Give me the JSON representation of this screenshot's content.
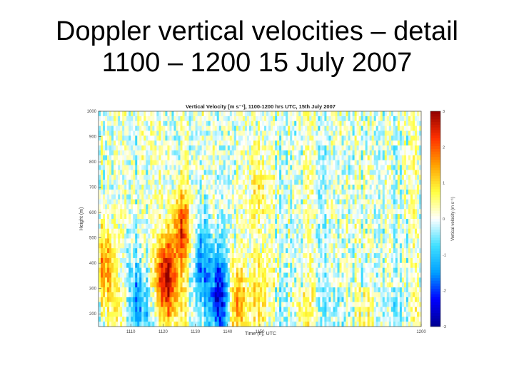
{
  "slide": {
    "title_line1": "Doppler vertical velocities – detail",
    "title_line2": "1100 – 1200 15 July 2007"
  },
  "chart_data": {
    "type": "heatmap",
    "title": "Vertical Velocity [m s⁻¹], 1100-1200 hrs UTC, 15th July 2007",
    "xlabel": "Time (h), UTC",
    "ylabel": "Height (m)",
    "colorbar_label": "Vertical velocity (m s⁻¹)",
    "x_ticks": [
      "1110",
      "1120",
      "1130",
      "1140",
      "1150",
      "1200"
    ],
    "y_ticks": [
      200,
      300,
      400,
      500,
      600,
      700,
      800,
      900,
      1000
    ],
    "colorbar_ticks": [
      -3,
      -2,
      -1,
      0,
      1,
      2,
      3
    ],
    "xlim": [
      1100,
      1200
    ],
    "ylim": [
      150,
      1000
    ],
    "clim": [
      -3,
      3
    ],
    "colormap": [
      "#00008f",
      "#0000ff",
      "#00a0ff",
      "#40e0ff",
      "#ffffff",
      "#ffff40",
      "#ffa000",
      "#ff3000",
      "#8f0000"
    ],
    "features": [
      {
        "name": "strong updraft",
        "time": 1121,
        "height": 330,
        "value": 2.8
      },
      {
        "name": "updraft plume top",
        "time": 1126,
        "height": 520,
        "value": 2.0
      },
      {
        "name": "updraft left edge",
        "time": 1102,
        "height": 380,
        "value": 1.5
      },
      {
        "name": "downdraft",
        "time": 1138,
        "height": 280,
        "value": -2.5
      },
      {
        "name": "downdraft",
        "time": 1132,
        "height": 400,
        "value": -1.5
      },
      {
        "name": "downdraft",
        "time": 1112,
        "height": 250,
        "value": -1.4
      },
      {
        "name": "updraft",
        "time": 1142,
        "height": 260,
        "value": 1.5
      },
      {
        "name": "updraft",
        "time": 1151,
        "height": 280,
        "value": 1.0
      },
      {
        "name": "weak updraft layer",
        "time": 1150,
        "height": 700,
        "value": 0.6
      }
    ]
  }
}
